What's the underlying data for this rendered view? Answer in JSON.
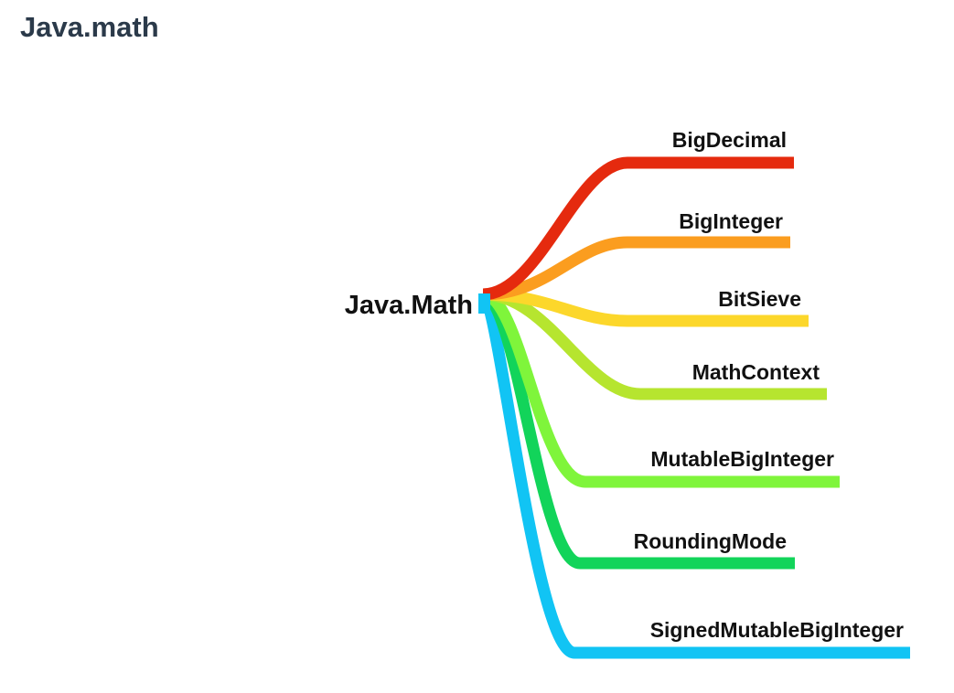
{
  "page_title": "Java.math",
  "root": {
    "label": "Java.Math"
  },
  "branches": [
    {
      "label": "BigDecimal",
      "color": "#e52a0e"
    },
    {
      "label": "BigInteger",
      "color": "#fb9d1f"
    },
    {
      "label": "BitSieve",
      "color": "#fcd72b"
    },
    {
      "label": "MathContext",
      "color": "#b6e52f"
    },
    {
      "label": "MutableBigInteger",
      "color": "#7ff53b"
    },
    {
      "label": "RoundingMode",
      "color": "#12d45a"
    },
    {
      "label": "SignedMutableBigInteger",
      "color": "#11c4f4"
    }
  ]
}
